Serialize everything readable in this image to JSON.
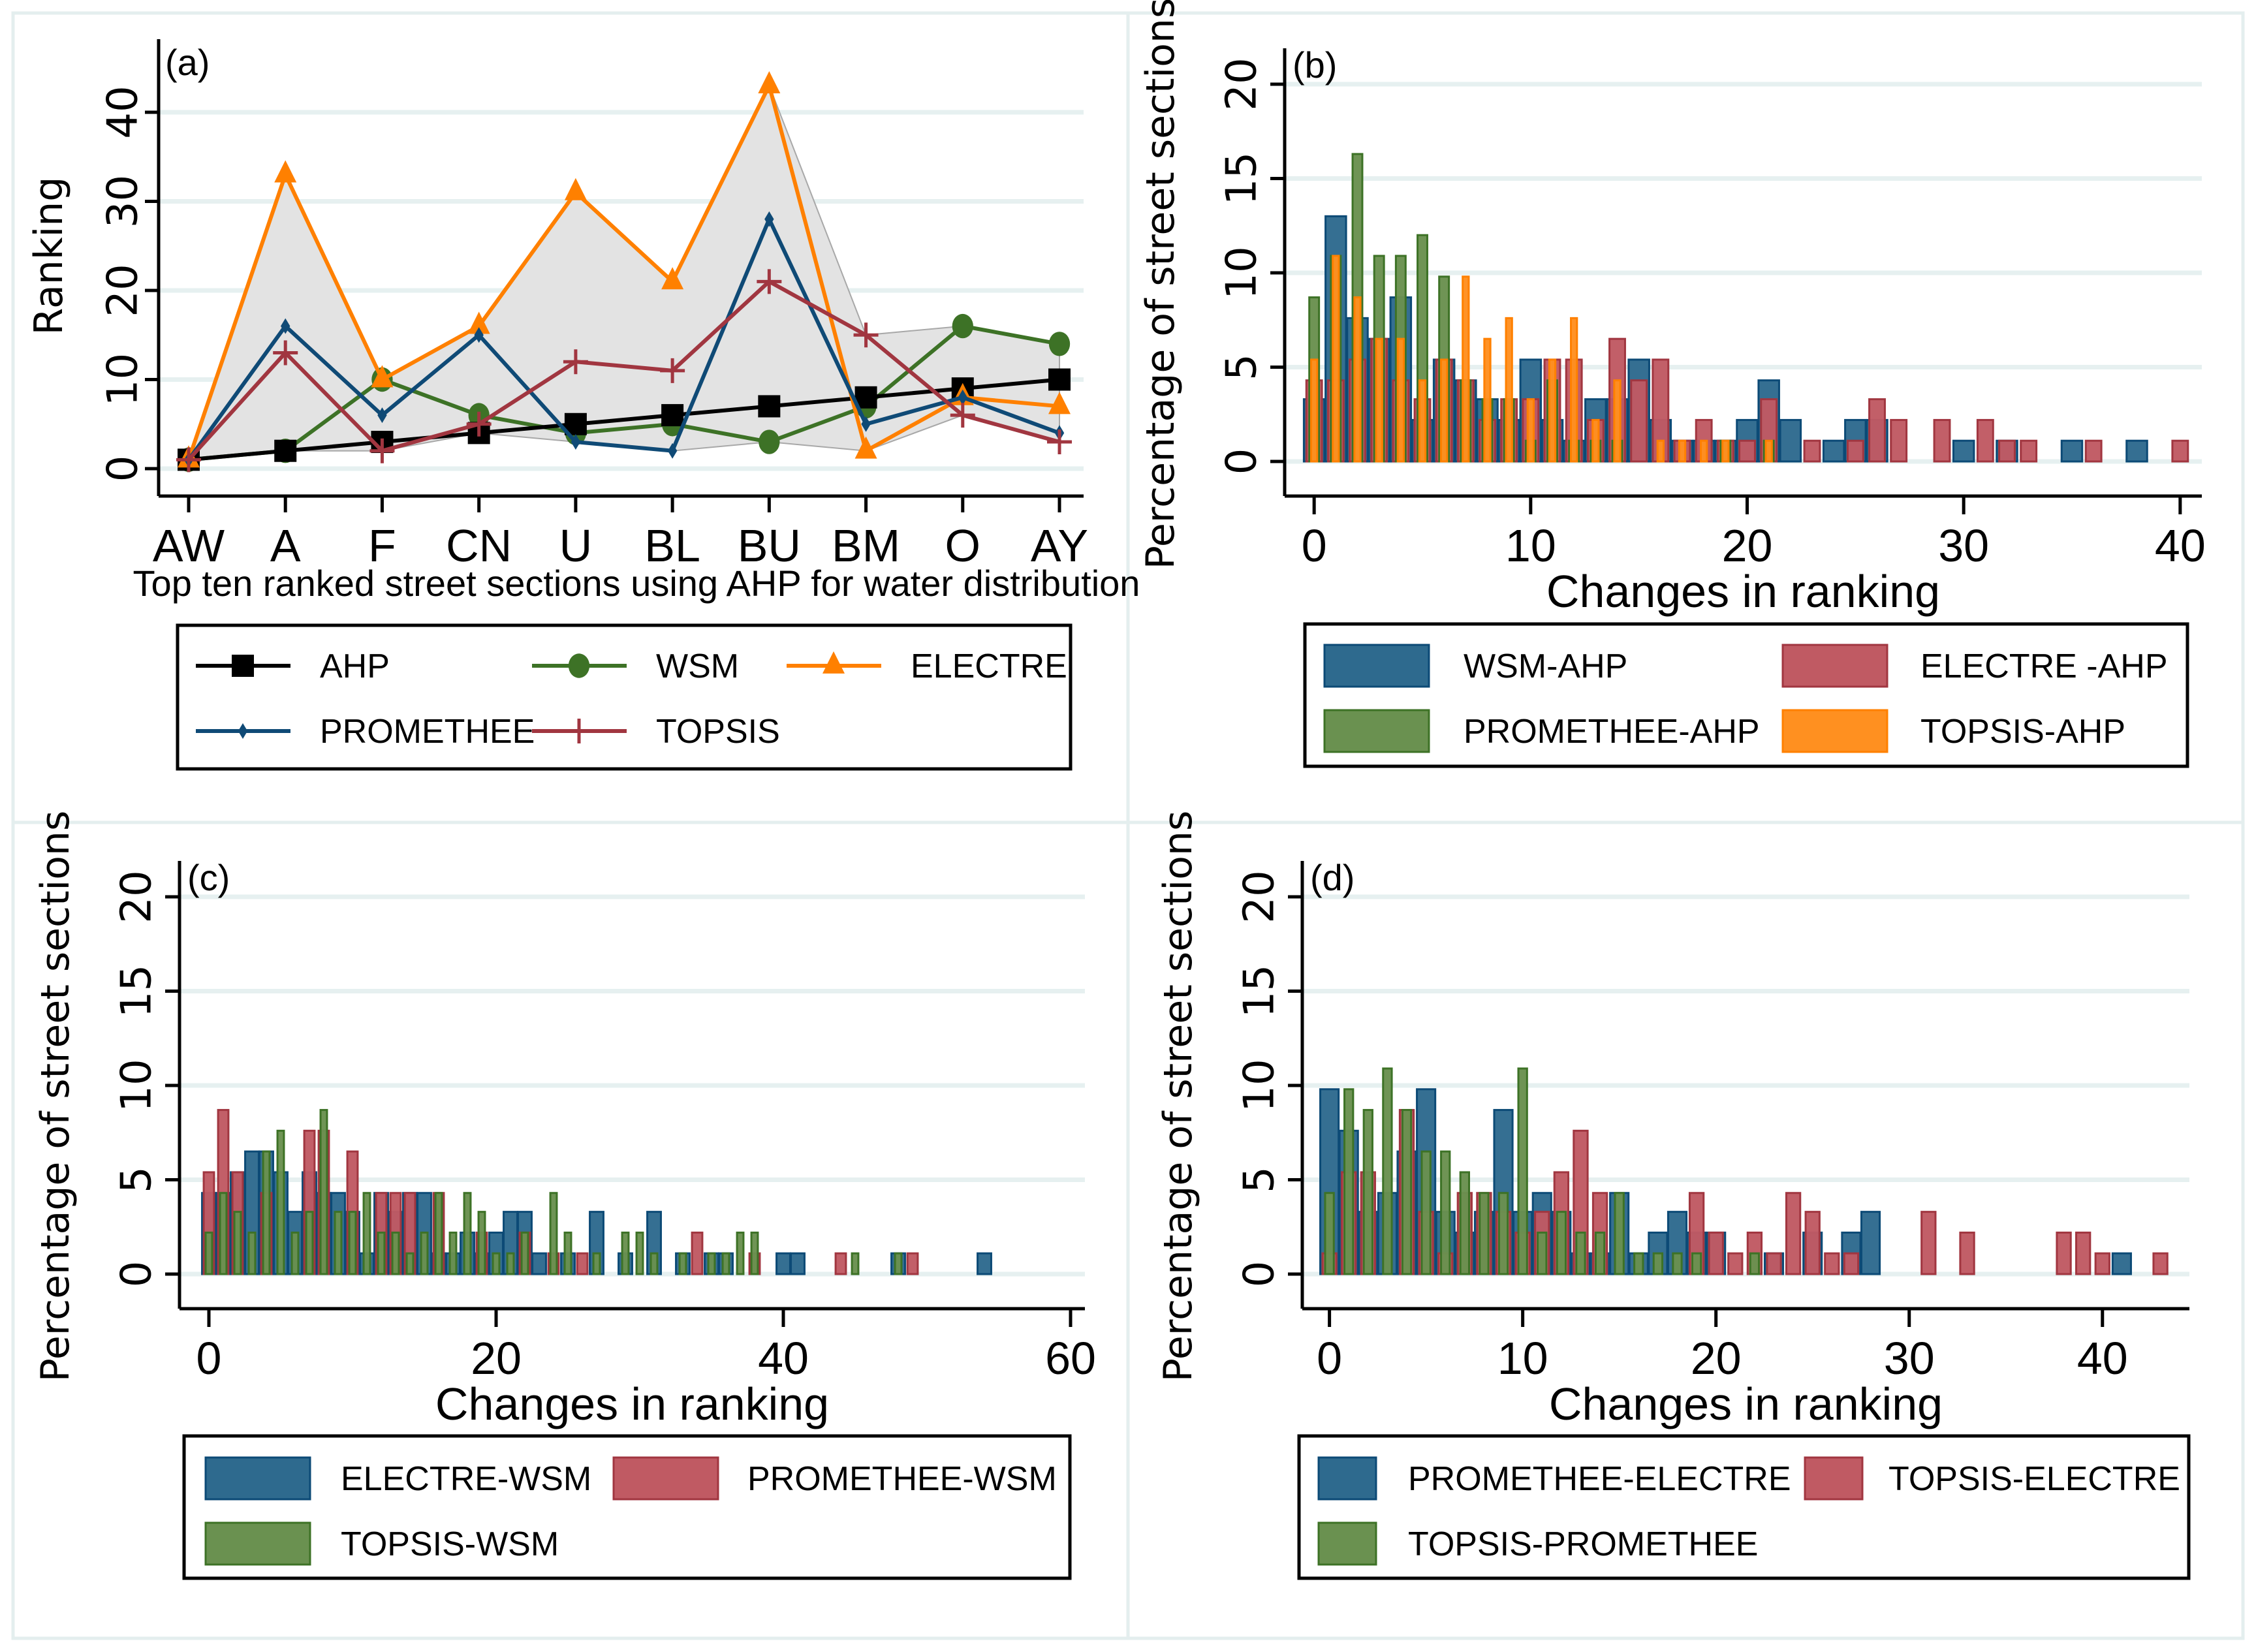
{
  "chart_data": [
    {
      "id": "a",
      "type": "line",
      "panel_label": "(a)",
      "title": "",
      "xlabel": "Top ten ranked street sections using AHP for water distribution",
      "ylabel": "Ranking",
      "categories": [
        "AW",
        "A",
        "F",
        "CN",
        "U",
        "BL",
        "BU",
        "BM",
        "O",
        "AY"
      ],
      "ylim": [
        -3,
        45
      ],
      "yticks": [
        0,
        10,
        20,
        30,
        40
      ],
      "grid": true,
      "shaded_range": true,
      "legend_position": "bottom",
      "series": [
        {
          "name": "AHP",
          "color": "#000000",
          "marker": "square",
          "values": [
            1,
            2,
            3,
            4,
            5,
            6,
            7,
            8,
            9,
            10
          ]
        },
        {
          "name": "WSM",
          "color": "#3d7226",
          "marker": "circle",
          "values": [
            1,
            2,
            10,
            6,
            4,
            5,
            3,
            7,
            16,
            14
          ]
        },
        {
          "name": "ELECTRE",
          "color": "#ff8000",
          "marker": "triangle",
          "values": [
            1,
            33,
            10,
            16,
            31,
            21,
            43,
            2,
            8,
            7
          ]
        },
        {
          "name": "PROMETHEE",
          "color": "#0f4a76",
          "marker": "diamond",
          "values": [
            1,
            16,
            6,
            15,
            3,
            2,
            28,
            5,
            8,
            4
          ]
        },
        {
          "name": "TOPSIS",
          "color": "#a13640",
          "marker": "plus",
          "values": [
            1,
            13,
            2,
            5,
            12,
            11,
            21,
            15,
            6,
            3
          ]
        }
      ]
    },
    {
      "id": "b",
      "type": "bar",
      "panel_label": "(b)",
      "xlabel": "Changes in ranking",
      "ylabel": "Percentage of street sections",
      "xlim": [
        -1,
        41
      ],
      "xticks": [
        0,
        10,
        20,
        30,
        40
      ],
      "ylim": [
        -2,
        21
      ],
      "yticks": [
        0,
        5,
        10,
        15,
        20
      ],
      "grid": true,
      "legend_position": "bottom",
      "series": [
        {
          "name": "WSM-AHP",
          "color": "#2e6a8e",
          "edge": "#0c4a76",
          "width": "wide",
          "x": [
            0,
            1,
            2,
            3,
            4,
            5,
            6,
            7,
            8,
            9,
            10,
            11,
            12,
            13,
            14,
            15,
            16,
            17,
            18,
            19,
            20,
            21,
            22,
            24,
            25,
            26,
            30,
            32,
            35,
            38
          ],
          "values": [
            3.3,
            13.0,
            7.6,
            6.5,
            8.7,
            2.2,
            5.4,
            4.3,
            3.3,
            2.2,
            5.4,
            2.2,
            1.1,
            3.3,
            3.3,
            5.4,
            2.2,
            1.1,
            1.1,
            1.1,
            2.2,
            4.3,
            2.2,
            1.1,
            2.2,
            2.2,
            1.1,
            1.1,
            1.1,
            1.1
          ]
        },
        {
          "name": "ELECTRE -AHP",
          "color": "#c05a63",
          "edge": "#a13640",
          "width": "medium",
          "x": [
            0,
            1,
            2,
            3,
            4,
            5,
            6,
            7,
            8,
            9,
            10,
            11,
            12,
            13,
            14,
            15,
            16,
            17,
            18,
            19,
            20,
            21,
            23,
            25,
            26,
            27,
            29,
            31,
            32,
            33,
            36,
            40
          ],
          "values": [
            4.3,
            4.3,
            5.4,
            6.5,
            4.3,
            3.3,
            5.4,
            4.3,
            2.2,
            3.3,
            3.3,
            5.4,
            5.4,
            2.2,
            6.5,
            4.3,
            5.4,
            1.1,
            2.2,
            1.1,
            1.1,
            3.3,
            1.1,
            1.1,
            3.3,
            2.2,
            2.2,
            2.2,
            1.1,
            1.1,
            1.1,
            1.1
          ]
        },
        {
          "name": "PROMETHEE-AHP",
          "color": "#6a9150",
          "edge": "#3d7226",
          "width": "narrow",
          "x": [
            0,
            1,
            2,
            3,
            4,
            5,
            6,
            7,
            8,
            9,
            10,
            11,
            12,
            13,
            14,
            19,
            21
          ],
          "values": [
            8.7,
            10.9,
            16.3,
            10.9,
            10.9,
            12.0,
            9.8,
            4.3,
            3.3,
            3.3,
            1.1,
            4.3,
            1.1,
            1.1,
            1.1,
            1.1,
            1.1
          ]
        },
        {
          "name": "TOPSIS-AHP",
          "color": "#ff9020",
          "edge": "#ff8000",
          "width": "thin",
          "x": [
            0,
            1,
            2,
            3,
            4,
            5,
            6,
            7,
            8,
            9,
            10,
            11,
            12,
            13,
            14,
            16,
            17,
            18,
            19,
            21
          ],
          "values": [
            5.4,
            10.9,
            8.7,
            6.5,
            6.5,
            4.3,
            5.4,
            9.8,
            6.5,
            7.6,
            3.3,
            5.4,
            7.6,
            2.2,
            4.3,
            1.1,
            1.1,
            1.1,
            1.1,
            1.1
          ]
        }
      ]
    },
    {
      "id": "c",
      "type": "bar",
      "panel_label": "(c)",
      "xlabel": "Changes in ranking",
      "ylabel": "Percentage of street sections",
      "xlim": [
        -1.5,
        61
      ],
      "xticks": [
        0,
        20,
        40,
        60
      ],
      "ylim": [
        -2,
        21
      ],
      "yticks": [
        0,
        5,
        10,
        15,
        20
      ],
      "grid": true,
      "legend_position": "bottom",
      "series": [
        {
          "name": "ELECTRE-WSM",
          "color": "#2e6a8e",
          "edge": "#0c4a76",
          "width": "wide",
          "x": [
            0,
            1,
            2,
            3,
            4,
            5,
            6,
            7,
            8,
            9,
            10,
            11,
            12,
            13,
            14,
            15,
            16,
            17,
            18,
            19,
            20,
            21,
            22,
            23,
            25,
            27,
            29,
            31,
            33,
            35,
            36,
            40,
            41,
            48,
            54
          ],
          "values": [
            4.3,
            4.3,
            5.4,
            6.5,
            6.5,
            5.4,
            3.3,
            5.4,
            4.3,
            4.3,
            3.3,
            1.1,
            4.3,
            3.3,
            4.3,
            4.3,
            1.1,
            1.1,
            2.2,
            1.1,
            2.2,
            3.3,
            3.3,
            1.1,
            1.1,
            3.3,
            1.1,
            3.3,
            1.1,
            1.1,
            1.1,
            1.1,
            1.1,
            1.1,
            1.1
          ]
        },
        {
          "name": "PROMETHEE-WSM",
          "color": "#c05a63",
          "edge": "#a13640",
          "width": "medium",
          "x": [
            0,
            1,
            2,
            4,
            7,
            8,
            10,
            12,
            13,
            14,
            16,
            19,
            22,
            24,
            26,
            34,
            38,
            44,
            49
          ],
          "values": [
            5.4,
            8.7,
            5.4,
            4.3,
            7.6,
            7.6,
            6.5,
            4.3,
            4.3,
            4.3,
            4.3,
            2.2,
            2.2,
            1.1,
            1.1,
            2.2,
            1.1,
            1.1,
            1.1
          ]
        },
        {
          "name": "TOPSIS-WSM",
          "color": "#6a9150",
          "edge": "#3d7226",
          "width": "narrow",
          "x": [
            0,
            1,
            2,
            3,
            4,
            5,
            6,
            7,
            8,
            9,
            10,
            11,
            12,
            13,
            14,
            15,
            16,
            17,
            18,
            19,
            20,
            21,
            22,
            24,
            25,
            27,
            29,
            30,
            31,
            33,
            35,
            36,
            37,
            38,
            45,
            48
          ],
          "values": [
            2.2,
            4.3,
            3.3,
            2.2,
            6.5,
            7.6,
            2.2,
            3.3,
            8.7,
            3.3,
            3.3,
            4.3,
            2.2,
            2.2,
            1.1,
            2.2,
            4.3,
            2.2,
            4.3,
            3.3,
            1.1,
            1.1,
            2.2,
            4.3,
            2.2,
            1.1,
            2.2,
            2.2,
            1.1,
            1.1,
            1.1,
            1.1,
            2.2,
            2.2,
            1.1,
            1.1
          ]
        }
      ]
    },
    {
      "id": "d",
      "type": "bar",
      "panel_label": "(d)",
      "xlabel": "Changes in ranking",
      "ylabel": "Percentage of street sections",
      "xlim": [
        -1,
        44.5
      ],
      "xticks": [
        0,
        10,
        20,
        30,
        40
      ],
      "ylim": [
        -2,
        21
      ],
      "yticks": [
        0,
        5,
        10,
        15,
        20
      ],
      "grid": true,
      "legend_position": "bottom",
      "series": [
        {
          "name": "PROMETHEE-ELECTRE",
          "color": "#2e6a8e",
          "edge": "#0c4a76",
          "width": "wide",
          "x": [
            0,
            1,
            2,
            3,
            4,
            5,
            6,
            7,
            8,
            9,
            10,
            11,
            12,
            13,
            14,
            15,
            16,
            17,
            18,
            19,
            20,
            23,
            25,
            27,
            28,
            41
          ],
          "values": [
            9.8,
            7.6,
            3.3,
            4.3,
            6.5,
            9.8,
            3.3,
            2.2,
            3.3,
            8.7,
            3.3,
            4.3,
            3.3,
            1.1,
            1.1,
            4.3,
            1.1,
            2.2,
            3.3,
            2.2,
            2.2,
            1.1,
            2.2,
            2.2,
            3.3,
            1.1
          ]
        },
        {
          "name": "TOPSIS-ELECTRE",
          "color": "#c05a63",
          "edge": "#a13640",
          "width": "medium",
          "x": [
            0,
            1,
            2,
            4,
            5,
            6,
            7,
            8,
            9,
            10,
            11,
            12,
            13,
            14,
            19,
            20,
            21,
            22,
            23,
            24,
            25,
            26,
            27,
            31,
            33,
            38,
            39,
            40,
            43
          ],
          "values": [
            1.1,
            5.4,
            5.4,
            8.7,
            3.3,
            1.1,
            4.3,
            4.3,
            3.3,
            2.2,
            3.3,
            5.4,
            7.6,
            4.3,
            4.3,
            2.2,
            1.1,
            2.2,
            1.1,
            4.3,
            3.3,
            1.1,
            1.1,
            3.3,
            2.2,
            2.2,
            2.2,
            1.1,
            1.1
          ]
        },
        {
          "name": "TOPSIS-PROMETHEE",
          "color": "#6a9150",
          "edge": "#3d7226",
          "width": "narrow",
          "x": [
            0,
            1,
            2,
            3,
            4,
            5,
            6,
            7,
            8,
            9,
            10,
            11,
            12,
            13,
            14,
            15,
            16,
            17,
            18,
            19,
            22
          ],
          "values": [
            4.3,
            9.8,
            8.7,
            10.9,
            8.7,
            6.5,
            6.5,
            5.4,
            4.3,
            4.3,
            10.9,
            2.2,
            3.3,
            2.2,
            2.2,
            4.3,
            1.1,
            1.1,
            1.1,
            1.1,
            1.1
          ]
        }
      ]
    }
  ]
}
